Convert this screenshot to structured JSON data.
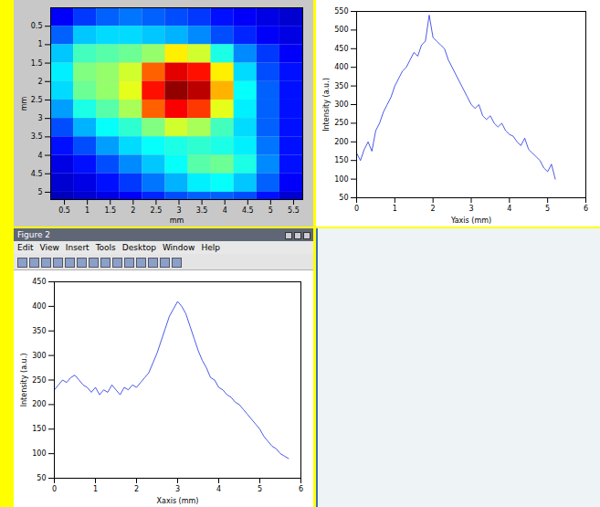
{
  "window": {
    "title": "Figure 2",
    "menu": [
      "Edit",
      "View",
      "Insert",
      "Tools",
      "Desktop",
      "Window",
      "Help"
    ]
  },
  "chart_data": [
    {
      "type": "heatmap",
      "xlabel": "mm",
      "ylabel": "mm",
      "xlim": [
        0.2,
        5.7
      ],
      "ylim": [
        5.2,
        0
      ],
      "xticks": [
        0.5,
        1,
        1.5,
        2,
        2.5,
        3,
        3.5,
        4,
        4.5,
        5,
        5.5
      ],
      "yticks": [
        0.5,
        1,
        1.5,
        2,
        2.5,
        3,
        3.5,
        4,
        4.5,
        5
      ],
      "x_bins": [
        0.2,
        0.7,
        1.2,
        1.7,
        2.2,
        2.7,
        3.2,
        3.7,
        4.2,
        4.7,
        5.2,
        5.7
      ],
      "y_bins": [
        0,
        0.5,
        1,
        1.5,
        2,
        2.5,
        3,
        3.5,
        4,
        4.5,
        5,
        5.2
      ],
      "color_range": [
        0,
        500
      ],
      "cells": [
        [
          60,
          90,
          110,
          120,
          110,
          100,
          90,
          70,
          60,
          50,
          40
        ],
        [
          110,
          160,
          170,
          170,
          160,
          150,
          130,
          100,
          80,
          60,
          50
        ],
        [
          160,
          220,
          230,
          240,
          260,
          320,
          290,
          200,
          130,
          90,
          60
        ],
        [
          180,
          250,
          260,
          290,
          390,
          450,
          430,
          320,
          170,
          100,
          70
        ],
        [
          170,
          240,
          260,
          300,
          430,
          490,
          470,
          350,
          190,
          110,
          70
        ],
        [
          140,
          200,
          230,
          270,
          390,
          440,
          410,
          300,
          180,
          110,
          70
        ],
        [
          100,
          150,
          190,
          210,
          250,
          290,
          270,
          220,
          170,
          110,
          70
        ],
        [
          70,
          100,
          140,
          170,
          190,
          200,
          210,
          200,
          180,
          120,
          70
        ],
        [
          50,
          70,
          100,
          130,
          160,
          190,
          230,
          240,
          200,
          130,
          70
        ],
        [
          40,
          50,
          70,
          90,
          120,
          150,
          180,
          190,
          160,
          110,
          60
        ],
        [
          30,
          40,
          50,
          60,
          80,
          100,
          110,
          110,
          100,
          70,
          40
        ]
      ]
    },
    {
      "type": "line",
      "xlabel": "Yaxis (mm)",
      "ylabel": "Intensity (a.u.)",
      "xlim": [
        0,
        6
      ],
      "ylim": [
        50,
        550
      ],
      "xticks": [
        0,
        1,
        2,
        3,
        4,
        5,
        6
      ],
      "yticks": [
        50,
        100,
        150,
        200,
        250,
        300,
        350,
        400,
        450,
        500,
        550
      ],
      "color": "#2030e0",
      "x": [
        0,
        0.1,
        0.2,
        0.3,
        0.4,
        0.5,
        0.6,
        0.7,
        0.8,
        0.9,
        1,
        1.1,
        1.2,
        1.3,
        1.4,
        1.5,
        1.6,
        1.7,
        1.8,
        1.9,
        2,
        2.1,
        2.2,
        2.3,
        2.4,
        2.5,
        2.6,
        2.7,
        2.8,
        2.9,
        3,
        3.1,
        3.2,
        3.3,
        3.4,
        3.5,
        3.6,
        3.7,
        3.8,
        3.9,
        4,
        4.1,
        4.2,
        4.3,
        4.4,
        4.5,
        4.6,
        4.7,
        4.8,
        4.9,
        5,
        5.1,
        5.2
      ],
      "values": [
        170,
        150,
        180,
        200,
        175,
        230,
        250,
        280,
        300,
        320,
        350,
        370,
        390,
        400,
        420,
        440,
        430,
        460,
        470,
        540,
        480,
        470,
        460,
        450,
        420,
        400,
        380,
        360,
        340,
        320,
        300,
        290,
        300,
        270,
        260,
        270,
        250,
        240,
        250,
        230,
        220,
        215,
        200,
        190,
        210,
        180,
        170,
        160,
        150,
        130,
        120,
        140,
        100
      ]
    },
    {
      "type": "line",
      "xlabel": "Xaxis (mm)",
      "ylabel": "Intensity (a.u.)",
      "xlim": [
        0,
        6
      ],
      "ylim": [
        50,
        450
      ],
      "xticks": [
        0,
        1,
        2,
        3,
        4,
        5,
        6
      ],
      "yticks": [
        50,
        100,
        150,
        200,
        250,
        300,
        350,
        400,
        450
      ],
      "color": "#2030e0",
      "x": [
        0,
        0.1,
        0.2,
        0.3,
        0.4,
        0.5,
        0.6,
        0.7,
        0.8,
        0.9,
        1,
        1.1,
        1.2,
        1.3,
        1.4,
        1.5,
        1.6,
        1.7,
        1.8,
        1.9,
        2,
        2.1,
        2.2,
        2.3,
        2.4,
        2.5,
        2.6,
        2.7,
        2.8,
        2.9,
        3,
        3.1,
        3.2,
        3.3,
        3.4,
        3.5,
        3.6,
        3.7,
        3.8,
        3.9,
        4,
        4.1,
        4.2,
        4.3,
        4.4,
        4.5,
        4.6,
        4.7,
        4.8,
        4.9,
        5,
        5.1,
        5.2,
        5.3,
        5.4,
        5.5,
        5.6,
        5.7
      ],
      "values": [
        230,
        240,
        250,
        245,
        255,
        260,
        250,
        240,
        235,
        225,
        235,
        220,
        230,
        225,
        240,
        230,
        220,
        235,
        230,
        240,
        235,
        245,
        255,
        265,
        285,
        305,
        330,
        355,
        380,
        395,
        410,
        400,
        385,
        360,
        335,
        310,
        290,
        275,
        255,
        250,
        235,
        230,
        220,
        215,
        205,
        200,
        190,
        180,
        170,
        160,
        150,
        135,
        125,
        115,
        110,
        100,
        95,
        90
      ]
    }
  ]
}
